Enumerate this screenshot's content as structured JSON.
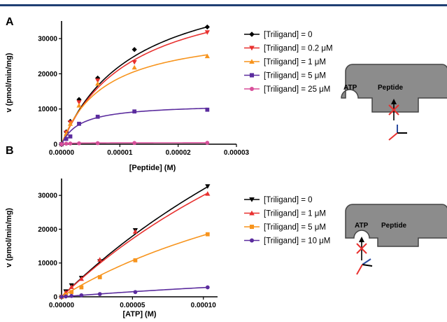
{
  "chart_data": [
    {
      "type": "scatter",
      "panel": "A",
      "xlabel": "[Peptide] (M)",
      "ylabel": "v (pmol/min/mg)",
      "xlim": [
        0,
        3e-05
      ],
      "ylim": [
        0,
        35000
      ],
      "xticks": [
        "0.00000",
        "0.00001",
        "0.00002",
        "0.00003"
      ],
      "yticks": [
        "0",
        "10000",
        "20000",
        "30000"
      ],
      "legend_position": "right",
      "series": [
        {
          "name": "[Triligand] = 0",
          "color": "#000000",
          "marker": "diamond",
          "x": [
            0,
            8e-07,
            1.5e-06,
            3e-06,
            6.2e-06,
            1.25e-05,
            2.5e-05
          ],
          "y": [
            0,
            3500,
            6500,
            12700,
            18800,
            26900,
            33300
          ],
          "fit": {
            "vmax": 50000,
            "km": 1.25e-05
          }
        },
        {
          "name": "[Triligand] = 0.2 μM",
          "color": "#e8312f",
          "marker": "triangle-down",
          "x": [
            0,
            8e-07,
            1.5e-06,
            3e-06,
            6.2e-06,
            1.25e-05,
            2.5e-05
          ],
          "y": [
            0,
            3300,
            6200,
            11900,
            18100,
            23300,
            31800
          ],
          "fit": {
            "vmax": 47000,
            "km": 1.2e-05
          }
        },
        {
          "name": "[Triligand] = 1 μM",
          "color": "#f7941d",
          "marker": "triangle-up",
          "x": [
            0,
            8e-07,
            1.5e-06,
            3e-06,
            6.2e-06,
            1.25e-05,
            2.5e-05
          ],
          "y": [
            0,
            3000,
            5800,
            11000,
            17200,
            21800,
            25000
          ],
          "fit": {
            "vmax": 33000,
            "km": 7.5e-06
          }
        },
        {
          "name": "[Triligand] = 5 μM",
          "color": "#5b2c9e",
          "marker": "square",
          "x": [
            0,
            8e-07,
            1.5e-06,
            3e-06,
            6.2e-06,
            1.25e-05,
            2.5e-05
          ],
          "y": [
            0,
            1500,
            2200,
            5800,
            7800,
            9300,
            9800
          ],
          "fit": {
            "vmax": 11500,
            "km": 3.2e-06
          }
        },
        {
          "name": "[Triligand] = 25 μM",
          "color": "#d84f9a",
          "marker": "circle",
          "x": [
            0,
            8e-07,
            1.5e-06,
            3e-06,
            6.2e-06,
            1.25e-05,
            2.5e-05
          ],
          "y": [
            0,
            150,
            200,
            250,
            300,
            350,
            400
          ],
          "fit": {
            "vmax": 420,
            "km": 1e-06
          }
        }
      ]
    },
    {
      "type": "scatter",
      "panel": "B",
      "xlabel": "[ATP] (M)",
      "ylabel": "v (pmol/min/mg)",
      "xlim": [
        0,
        0.00011
      ],
      "ylim": [
        0,
        35000
      ],
      "xticks": [
        "0.00000",
        "0.00005",
        "0.00010"
      ],
      "yticks": [
        "0",
        "10000",
        "20000",
        "30000"
      ],
      "legend_position": "right",
      "series": [
        {
          "name": "[Triligand] = 0",
          "color": "#000000",
          "marker": "triangle-down",
          "x": [
            0,
            3e-06,
            7e-06,
            1.4e-05,
            2.7e-05,
            5.2e-05,
            0.000103
          ],
          "y": [
            0,
            1600,
            3400,
            5600,
            10500,
            19700,
            32700
          ],
          "fit": {
            "vmax": 140000,
            "km": 0.00034
          }
        },
        {
          "name": "[Triligand] = 1 μM",
          "color": "#e8312f",
          "marker": "triangle-up",
          "x": [
            0,
            3e-06,
            7e-06,
            1.4e-05,
            2.7e-05,
            5.2e-05,
            0.000103
          ],
          "y": [
            0,
            1300,
            2900,
            5300,
            11000,
            19300,
            30500
          ],
          "fit": {
            "vmax": 120000,
            "km": 0.0003
          }
        },
        {
          "name": "[Triligand] = 5 μM",
          "color": "#f7941d",
          "marker": "square",
          "x": [
            0,
            3e-06,
            7e-06,
            1.4e-05,
            2.7e-05,
            5.2e-05,
            0.000103
          ],
          "y": [
            0,
            600,
            1400,
            2800,
            5800,
            10800,
            18500
          ],
          "fit": {
            "vmax": 60000,
            "km": 0.00023
          }
        },
        {
          "name": "[Triligand] = 10 μM",
          "color": "#5b2c9e",
          "marker": "circle",
          "x": [
            0,
            3e-06,
            7e-06,
            1.4e-05,
            2.7e-05,
            5.2e-05,
            0.000103
          ],
          "y": [
            0,
            100,
            250,
            450,
            800,
            1400,
            2800
          ],
          "fit": {
            "vmax": 15000,
            "km": 0.00045
          }
        }
      ]
    }
  ],
  "schematics": [
    {
      "site1": "ATP",
      "site2": "Peptide",
      "blocked_site": "Peptide"
    },
    {
      "site1": "ATP",
      "site2": "Peptide",
      "blocked_site": "ATP"
    }
  ]
}
